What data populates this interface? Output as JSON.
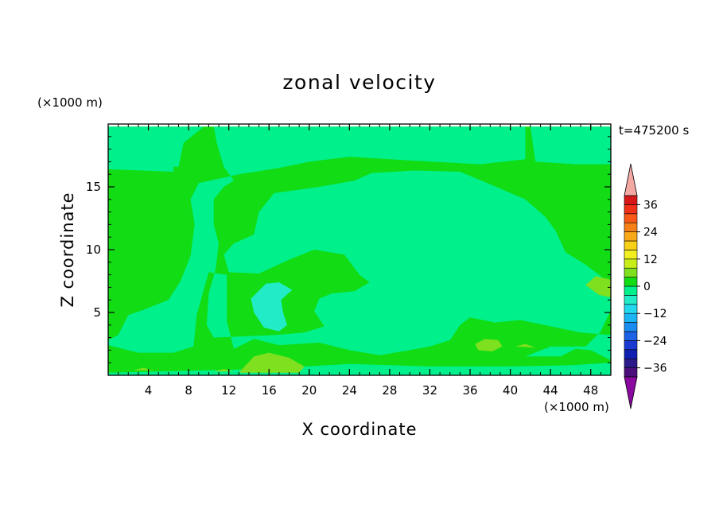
{
  "chart_data": {
    "type": "heatmap",
    "title": "zonal velocity",
    "xlabel": "X coordinate",
    "ylabel": "Z coordinate",
    "x_unit": "(×1000 m)",
    "y_unit": "(×1000 m)",
    "time_label": "t=475200 s",
    "xlim": [
      0,
      50
    ],
    "ylim": [
      0,
      20
    ],
    "x_ticks": [
      4,
      8,
      12,
      16,
      20,
      24,
      28,
      32,
      36,
      40,
      44,
      48
    ],
    "y_ticks": [
      5,
      10,
      15
    ],
    "colorbar": {
      "levels": [
        -40,
        -36,
        -32,
        -28,
        -24,
        -20,
        -16,
        -12,
        -8,
        -4,
        0,
        4,
        8,
        12,
        16,
        20,
        24,
        28,
        32,
        36,
        40
      ],
      "colors": [
        "#4b0e7a",
        "#2a1a8a",
        "#0f1fb0",
        "#1b3ad2",
        "#1e62e6",
        "#1a8cf0",
        "#1cb4f4",
        "#22d8ee",
        "#22ecc8",
        "#00f08c",
        "#12dc14",
        "#7ee01e",
        "#c8ee1a",
        "#f0f020",
        "#f8d018",
        "#f8a818",
        "#f88018",
        "#f85818",
        "#f03018",
        "#d81818"
      ],
      "under_color": "#8a0aa0",
      "over_color": "#f4a8a4",
      "tick_values": [
        -36,
        -24,
        -12,
        0,
        12,
        24,
        36
      ],
      "tick_labels": [
        "−36",
        "−24",
        "−12",
        "0",
        "12",
        "24",
        "36"
      ]
    },
    "field_regions": [
      {
        "value": 2,
        "points": [
          [
            0,
            19.8
          ],
          [
            50,
            19.8
          ],
          [
            50,
            0
          ],
          [
            0,
            0
          ]
        ]
      },
      {
        "value": -2,
        "points": [
          [
            0,
            19.8
          ],
          [
            6.5,
            19.8
          ],
          [
            6.5,
            16.2
          ],
          [
            0,
            16.4
          ]
        ]
      },
      {
        "value": -2,
        "points": [
          [
            6.5,
            19.8
          ],
          [
            9.5,
            19.8
          ],
          [
            7.5,
            18.5
          ],
          [
            7,
            16.6
          ],
          [
            6.5,
            16.6
          ]
        ]
      },
      {
        "value": -2,
        "points": [
          [
            10.5,
            19.8
          ],
          [
            41.5,
            19.8
          ],
          [
            41.5,
            17.2
          ],
          [
            37,
            16.8
          ],
          [
            30,
            17.1
          ],
          [
            24,
            17.4
          ],
          [
            20,
            17.0
          ],
          [
            17,
            16.5
          ],
          [
            13,
            16.0
          ],
          [
            9,
            15.3
          ],
          [
            8.2,
            14.0
          ],
          [
            8.6,
            12.0
          ],
          [
            8.2,
            9.5
          ],
          [
            7.2,
            7.5
          ],
          [
            6,
            6.0
          ],
          [
            3.5,
            5.2
          ],
          [
            2,
            4.8
          ],
          [
            1,
            3.2
          ],
          [
            0,
            2.8
          ],
          [
            0,
            2.4
          ],
          [
            3,
            1.8
          ],
          [
            6.5,
            1.8
          ],
          [
            8.5,
            2.3
          ],
          [
            8.8,
            4.8
          ],
          [
            9.5,
            6.8
          ],
          [
            10,
            8.2
          ],
          [
            11.8,
            8.0
          ],
          [
            11.8,
            4.3
          ],
          [
            12.5,
            2.1
          ],
          [
            14.5,
            2.9
          ],
          [
            17,
            2.4
          ],
          [
            21,
            2.6
          ],
          [
            24,
            2.0
          ],
          [
            27,
            1.6
          ],
          [
            30,
            2.0
          ],
          [
            32,
            2.3
          ],
          [
            34,
            2.8
          ],
          [
            35,
            4.0
          ],
          [
            36,
            4.6
          ],
          [
            38.5,
            4.2
          ],
          [
            41,
            4.4
          ],
          [
            44,
            3.9
          ],
          [
            47,
            3.4
          ],
          [
            50,
            3.2
          ],
          [
            50,
            1.0
          ],
          [
            46,
            0.8
          ],
          [
            40,
            0.7
          ],
          [
            32,
            0.7
          ],
          [
            24,
            0.9
          ],
          [
            15,
            0.5
          ],
          [
            10,
            0.4
          ],
          [
            5,
            0.3
          ],
          [
            0,
            0.2
          ],
          [
            0,
            0
          ],
          [
            50,
            0
          ],
          [
            50,
            1.2
          ],
          [
            48,
            2.0
          ],
          [
            46.5,
            2.1
          ],
          [
            45,
            1.5
          ],
          [
            41.5,
            1.5
          ],
          [
            44,
            2.3
          ],
          [
            47.5,
            2.3
          ],
          [
            49,
            3.5
          ],
          [
            50,
            5.2
          ],
          [
            50,
            7.3
          ],
          [
            47.5,
            8.8
          ],
          [
            45.5,
            9.8
          ],
          [
            44.5,
            11.5
          ],
          [
            43.5,
            12.6
          ],
          [
            41.5,
            14.0
          ],
          [
            38,
            15.2
          ],
          [
            35,
            16.2
          ],
          [
            30.5,
            16.3
          ],
          [
            26.2,
            16.1
          ],
          [
            24.5,
            15.5
          ],
          [
            21,
            15.0
          ],
          [
            16.5,
            14.5
          ],
          [
            15,
            13.0
          ],
          [
            14.5,
            11.2
          ],
          [
            12.5,
            10.5
          ],
          [
            11.5,
            9.6
          ],
          [
            12,
            8.2
          ],
          [
            15,
            8.1
          ],
          [
            18,
            9.2
          ],
          [
            20.5,
            10.0
          ],
          [
            23.5,
            9.6
          ],
          [
            25,
            8.0
          ],
          [
            26,
            7.4
          ],
          [
            24.5,
            6.7
          ],
          [
            22.2,
            6.5
          ],
          [
            21,
            6.1
          ],
          [
            20.5,
            5.1
          ],
          [
            21.5,
            3.9
          ],
          [
            19.5,
            3.4
          ],
          [
            16.5,
            3.2
          ],
          [
            13.5,
            3.1
          ],
          [
            10.5,
            3.0
          ],
          [
            9.8,
            4.0
          ],
          [
            10,
            6.5
          ],
          [
            10.7,
            8.5
          ],
          [
            11,
            10.5
          ],
          [
            10.5,
            12.0
          ],
          [
            10.5,
            14.0
          ],
          [
            11.5,
            15.0
          ],
          [
            12.5,
            15.5
          ],
          [
            11.5,
            16.6
          ],
          [
            10.8,
            18.5
          ]
        ]
      },
      {
        "value": -2,
        "points": [
          [
            42,
            19.8
          ],
          [
            50,
            19.8
          ],
          [
            50,
            16.8
          ],
          [
            46.5,
            16.8
          ],
          [
            42.5,
            17.0
          ]
        ]
      },
      {
        "value": -6,
        "points": [
          [
            14.2,
            6.1
          ],
          [
            15.7,
            7.3
          ],
          [
            17,
            7.4
          ],
          [
            18.3,
            6.8
          ],
          [
            17.2,
            6.0
          ],
          [
            17.4,
            5.0
          ],
          [
            17.8,
            4.0
          ],
          [
            17,
            3.5
          ],
          [
            15.5,
            3.8
          ],
          [
            14.5,
            5.0
          ]
        ]
      },
      {
        "value": 6,
        "points": [
          [
            13,
            0.2
          ],
          [
            14.5,
            1.5
          ],
          [
            16,
            1.8
          ],
          [
            18,
            1.4
          ],
          [
            19.5,
            0.7
          ],
          [
            19,
            0.2
          ]
        ]
      },
      {
        "value": 6,
        "points": [
          [
            36.5,
            2.5
          ],
          [
            37.5,
            2.9
          ],
          [
            38.8,
            2.8
          ],
          [
            39.2,
            2.3
          ],
          [
            38.2,
            1.9
          ],
          [
            36.8,
            2.0
          ]
        ]
      },
      {
        "value": 6,
        "points": [
          [
            47.5,
            7.2
          ],
          [
            48.5,
            7.9
          ],
          [
            50,
            7.6
          ],
          [
            50,
            6.2
          ],
          [
            48.8,
            6.4
          ]
        ]
      },
      {
        "value": 6,
        "points": [
          [
            2.5,
            0.4
          ],
          [
            3.5,
            0.6
          ],
          [
            4.5,
            0.4
          ]
        ]
      },
      {
        "value": 6,
        "points": [
          [
            10.5,
            0.3
          ],
          [
            11.5,
            0.5
          ],
          [
            12.5,
            0.3
          ]
        ]
      },
      {
        "value": 6,
        "points": [
          [
            40.5,
            2.3
          ],
          [
            41.5,
            2.5
          ],
          [
            42.5,
            2.2
          ]
        ]
      }
    ]
  }
}
